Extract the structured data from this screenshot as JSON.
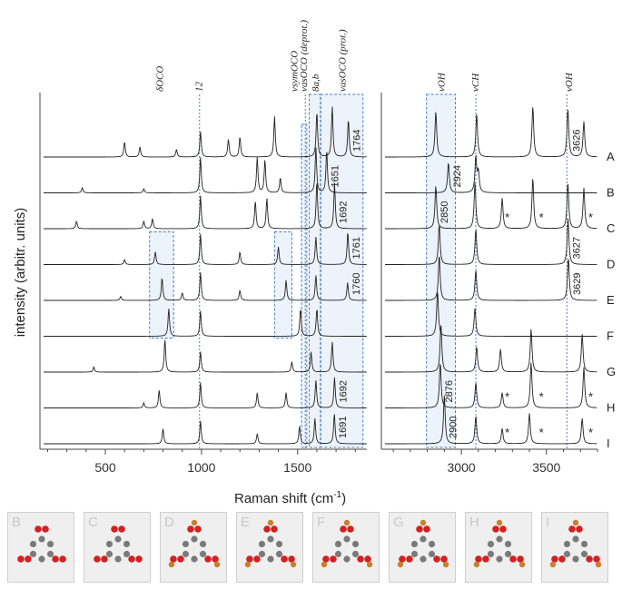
{
  "chart_data": {
    "type": "line",
    "xlabel": "Raman shift (cm",
    "xlabel_sup": "-1",
    "xlabel_close": ")",
    "ylabel": "intensity (arbitr. units)",
    "panels": [
      {
        "name": "left",
        "xlim": [
          160,
          1860
        ],
        "xticks": [
          500,
          1000,
          1500
        ]
      },
      {
        "name": "right",
        "xlim": [
          2530,
          3800
        ],
        "xticks": [
          3000,
          3500
        ]
      }
    ],
    "series": [
      {
        "name": "A",
        "left": {
          "peaks": [
            [
              600,
              0.3
            ],
            [
              680,
              0.2
            ],
            [
              870,
              0.15
            ],
            [
              995,
              0.5
            ],
            [
              1140,
              0.35
            ],
            [
              1200,
              0.4
            ],
            [
              1380,
              0.8
            ],
            [
              1600,
              0.9
            ],
            [
              1680,
              1.0
            ],
            [
              1764,
              0.75
            ]
          ]
        },
        "right": {
          "peaks": [
            [
              2850,
              0.9
            ],
            [
              3090,
              0.85
            ],
            [
              3420,
              1.0
            ],
            [
              3626,
              0.95
            ],
            [
              3720,
              0.7
            ]
          ]
        }
      },
      {
        "name": "B",
        "left": {
          "peaks": [
            [
              380,
              0.1
            ],
            [
              700,
              0.08
            ],
            [
              995,
              0.7
            ],
            [
              1290,
              0.7
            ],
            [
              1330,
              0.65
            ],
            [
              1410,
              0.3
            ],
            [
              1595,
              0.9
            ],
            [
              1651,
              0.85
            ]
          ]
        },
        "right": {
          "peaks": [
            [
              2924,
              0.6
            ],
            [
              3085,
              0.7
            ],
            [
              3100,
              0.4
            ]
          ]
        }
      },
      {
        "name": "C",
        "left": {
          "peaks": [
            [
              350,
              0.15
            ],
            [
              700,
              0.15
            ],
            [
              745,
              0.2
            ],
            [
              995,
              0.65
            ],
            [
              1280,
              0.55
            ],
            [
              1340,
              0.6
            ],
            [
              1600,
              0.95
            ],
            [
              1692,
              0.9
            ]
          ]
        },
        "right": {
          "peaks": [
            [
              2850,
              0.85
            ],
            [
              3080,
              0.9
            ],
            [
              3240,
              0.6
            ],
            [
              3420,
              1.0
            ],
            [
              3626,
              0.9
            ],
            [
              3720,
              0.8
            ]
          ]
        }
      },
      {
        "name": "D",
        "left": {
          "peaks": [
            [
              600,
              0.1
            ],
            [
              760,
              0.25
            ],
            [
              995,
              0.6
            ],
            [
              1200,
              0.25
            ],
            [
              1400,
              0.35
            ],
            [
              1595,
              0.55
            ],
            [
              1761,
              0.65
            ]
          ]
        },
        "right": {
          "peaks": [
            [
              2870,
              0.8
            ],
            [
              3085,
              0.7
            ],
            [
              3627,
              0.9
            ]
          ]
        }
      },
      {
        "name": "E",
        "left": {
          "peaks": [
            [
              580,
              0.08
            ],
            [
              795,
              0.45
            ],
            [
              900,
              0.15
            ],
            [
              995,
              0.55
            ],
            [
              1200,
              0.2
            ],
            [
              1440,
              0.4
            ],
            [
              1595,
              0.5
            ],
            [
              1760,
              0.35
            ]
          ]
        },
        "right": {
          "peaks": [
            [
              2870,
              0.9
            ],
            [
              3085,
              0.6
            ],
            [
              3629,
              0.85
            ]
          ]
        }
      },
      {
        "name": "F",
        "left": {
          "peaks": [
            [
              830,
              0.55
            ],
            [
              995,
              0.5
            ],
            [
              1515,
              0.55
            ],
            [
              1600,
              0.55
            ]
          ]
        },
        "right": {
          "peaks": [
            [
              2860,
              0.9
            ],
            [
              3080,
              0.55
            ]
          ]
        }
      },
      {
        "name": "G",
        "left": {
          "peaks": [
            [
              440,
              0.1
            ],
            [
              810,
              0.65
            ],
            [
              995,
              0.4
            ],
            [
              1470,
              0.2
            ],
            [
              1570,
              0.4
            ],
            [
              1680,
              0.6
            ]
          ]
        },
        "right": {
          "peaks": [
            [
              2880,
              0.95
            ],
            [
              3090,
              0.5
            ],
            [
              3230,
              0.45
            ],
            [
              3410,
              0.85
            ],
            [
              3710,
              0.75
            ]
          ]
        }
      },
      {
        "name": "H",
        "left": {
          "peaks": [
            [
              700,
              0.1
            ],
            [
              780,
              0.35
            ],
            [
              995,
              0.5
            ],
            [
              1290,
              0.3
            ],
            [
              1440,
              0.3
            ],
            [
              1595,
              0.55
            ],
            [
              1692,
              0.6
            ]
          ]
        },
        "right": {
          "peaks": [
            [
              2876,
              0.9
            ],
            [
              3085,
              0.5
            ],
            [
              3240,
              0.3
            ],
            [
              3410,
              0.9
            ],
            [
              3720,
              0.8
            ]
          ]
        }
      },
      {
        "name": "I",
        "left": {
          "peaks": [
            [
              800,
              0.3
            ],
            [
              995,
              0.45
            ],
            [
              1290,
              0.2
            ],
            [
              1510,
              0.35
            ],
            [
              1590,
              0.5
            ],
            [
              1691,
              0.6
            ]
          ]
        },
        "right": {
          "peaks": [
            [
              2900,
              0.95
            ],
            [
              3085,
              0.55
            ],
            [
              3240,
              0.3
            ],
            [
              3400,
              0.6
            ],
            [
              3710,
              0.5
            ]
          ]
        }
      }
    ],
    "peak_labels": [
      {
        "row": 0,
        "panel": "left",
        "x": 1764,
        "text": "1764"
      },
      {
        "row": 1,
        "panel": "left",
        "x": 1651,
        "text": "1651"
      },
      {
        "row": 2,
        "panel": "left",
        "x": 1692,
        "text": "1692"
      },
      {
        "row": 3,
        "panel": "left",
        "x": 1761,
        "text": "1761"
      },
      {
        "row": 4,
        "panel": "left",
        "x": 1760,
        "text": "1760"
      },
      {
        "row": 7,
        "panel": "left",
        "x": 1692,
        "text": "1692"
      },
      {
        "row": 8,
        "panel": "left",
        "x": 1691,
        "text": "1691"
      },
      {
        "row": 0,
        "panel": "right",
        "x": 3626,
        "text": "3626"
      },
      {
        "row": 1,
        "panel": "right",
        "x": 2924,
        "text": "2924"
      },
      {
        "row": 2,
        "panel": "right",
        "x": 2850,
        "text": "2850"
      },
      {
        "row": 3,
        "panel": "right",
        "x": 3627,
        "text": "3627"
      },
      {
        "row": 4,
        "panel": "right",
        "x": 3629,
        "text": "3629"
      },
      {
        "row": 7,
        "panel": "right",
        "x": 2876,
        "text": "2876"
      },
      {
        "row": 8,
        "panel": "right",
        "x": 2900,
        "text": "2900"
      }
    ],
    "mode_labels": [
      {
        "panel": "left",
        "x": 780,
        "text": "δOCO"
      },
      {
        "panel": "left",
        "x": 985,
        "text": "12"
      },
      {
        "panel": "left",
        "x": 1480,
        "text": "νsymOCO"
      },
      {
        "panel": "left",
        "x": 1530,
        "text": "νasOCO (deprot.)"
      },
      {
        "panel": "left",
        "x": 1590,
        "text": "8a,b"
      },
      {
        "panel": "left",
        "x": 1730,
        "text": "νasOCO (prot.)"
      },
      {
        "panel": "right",
        "x": 2880,
        "text": "νOH"
      },
      {
        "panel": "right",
        "x": 3080,
        "text": "νCH"
      },
      {
        "panel": "right",
        "x": 3630,
        "text": "νOH"
      }
    ],
    "stars": [
      {
        "row": 2,
        "x": 3270
      },
      {
        "row": 2,
        "x": 3470
      },
      {
        "row": 2,
        "x": 3760
      },
      {
        "row": 7,
        "x": 3270
      },
      {
        "row": 7,
        "x": 3470
      },
      {
        "row": 7,
        "x": 3760
      },
      {
        "row": 8,
        "x": 3270
      },
      {
        "row": 8,
        "x": 3470
      },
      {
        "row": 8,
        "x": 3760
      }
    ],
    "star_text": "*",
    "grid": false,
    "reference_lines": [
      {
        "panel": "left",
        "x": 990
      },
      {
        "panel": "left",
        "x": 1540
      },
      {
        "panel": "right",
        "x": 3085
      },
      {
        "panel": "right",
        "x": 3620
      }
    ]
  },
  "thumbnails": [
    "B",
    "C",
    "D",
    "E",
    "F",
    "G",
    "H",
    "I"
  ],
  "colors": {
    "line": "#222222",
    "highlight_fill": "#dfe9f5",
    "highlight_stroke": "#4a7fc1",
    "ref_line": "#4a7fc1",
    "oxygen": "#d42020",
    "carbon": "#7a7a7a",
    "hydrogen": "#f2f2f2",
    "metal": "#c8802a"
  }
}
